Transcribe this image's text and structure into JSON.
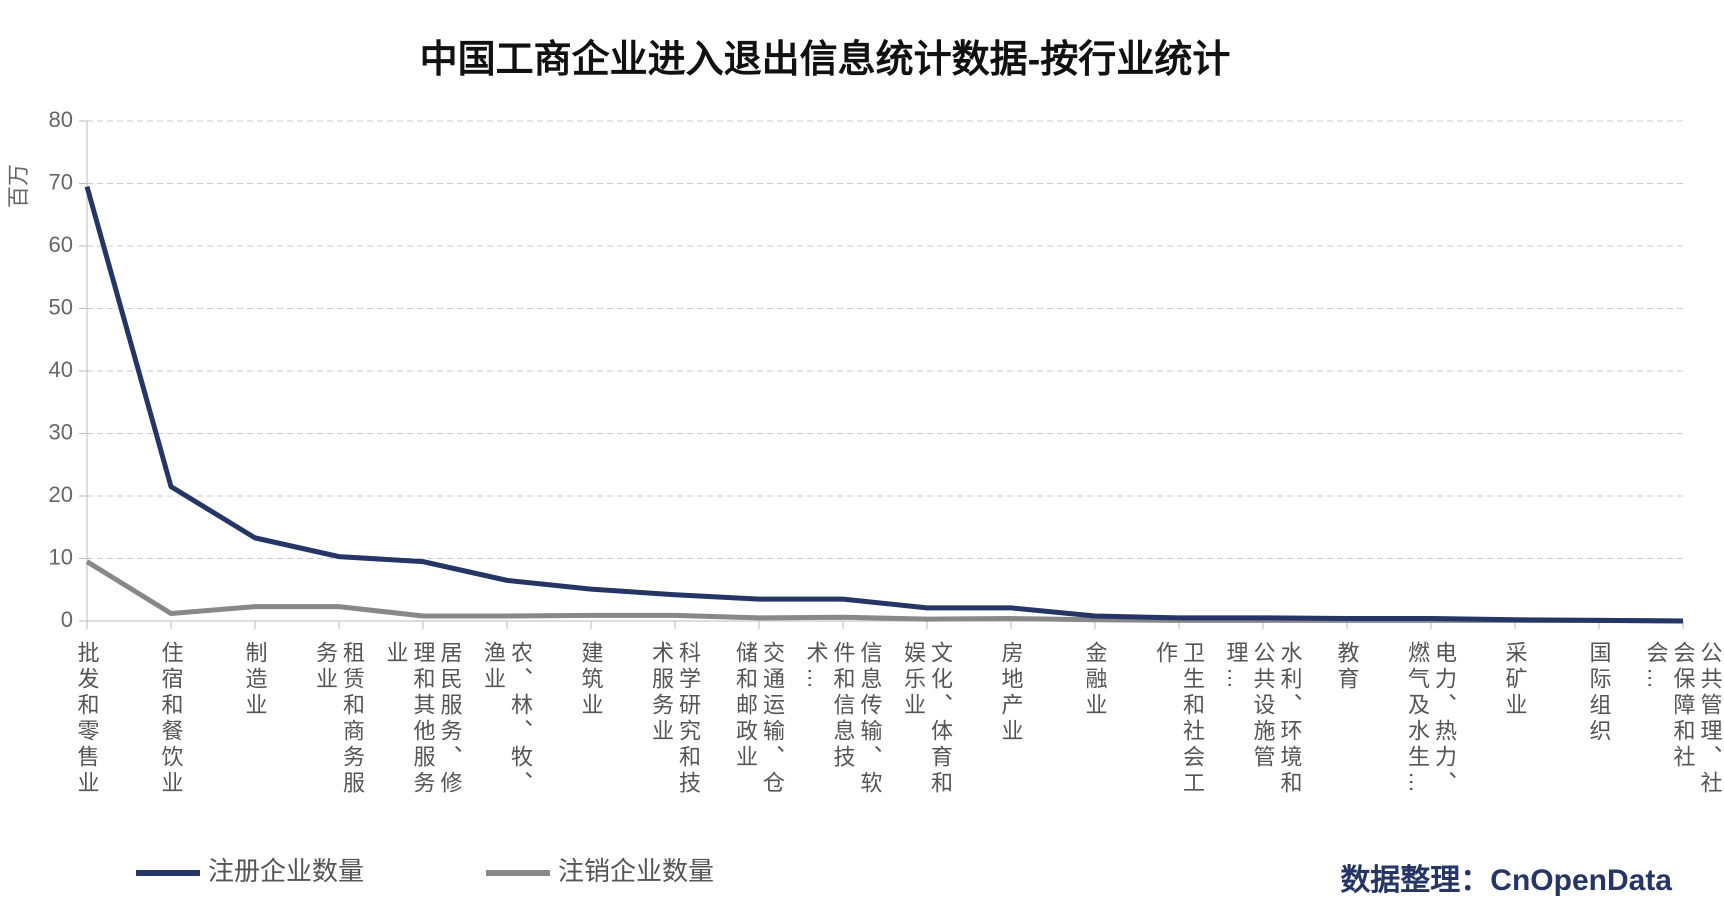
{
  "chart_data": {
    "type": "line",
    "title": "中国工商企业进入退出信息统计数据-按行业统计",
    "y_label": "百万",
    "source": "数据整理：CnOpenData",
    "categories": [
      "批发和零售业",
      "住宿和餐饮业",
      "制造业",
      "租赁和商务服务业",
      "居民服务、修理和其他服务业",
      "农、林、牧、渔业",
      "建筑业",
      "科学研究和技术服务业",
      "交通运输、仓储和邮政业",
      "信息传输、软件和信息技术…",
      "文化、体育和娱乐业",
      "房地产业",
      "金融业",
      "卫生和社会工作",
      "水利、环境和公共设施管理…",
      "教育",
      "电力、热力、燃气及水生…",
      "采矿业",
      "国际组织",
      "公共管理、社会保障和社会…"
    ],
    "series": [
      {
        "name": "注册企业数量",
        "color": "#253565",
        "values": [
          69.5,
          21.5,
          13.3,
          10.3,
          9.5,
          6.5,
          5.1,
          4.2,
          3.5,
          3.5,
          2.1,
          2.1,
          0.8,
          0.5,
          0.5,
          0.4,
          0.4,
          0.2,
          0.1,
          0.0
        ]
      },
      {
        "name": "注销企业数量",
        "color": "#888888",
        "values": [
          9.5,
          1.2,
          2.3,
          2.3,
          0.8,
          0.8,
          0.9,
          0.9,
          0.5,
          0.6,
          0.3,
          0.4,
          0.2,
          0.1,
          0.1,
          0.1,
          0.1,
          0.1,
          0.1,
          0.0
        ]
      }
    ],
    "ylim": [
      0,
      80
    ],
    "yticks": [
      0,
      10,
      20,
      30,
      40,
      50,
      60,
      70,
      80
    ],
    "grid": true
  }
}
